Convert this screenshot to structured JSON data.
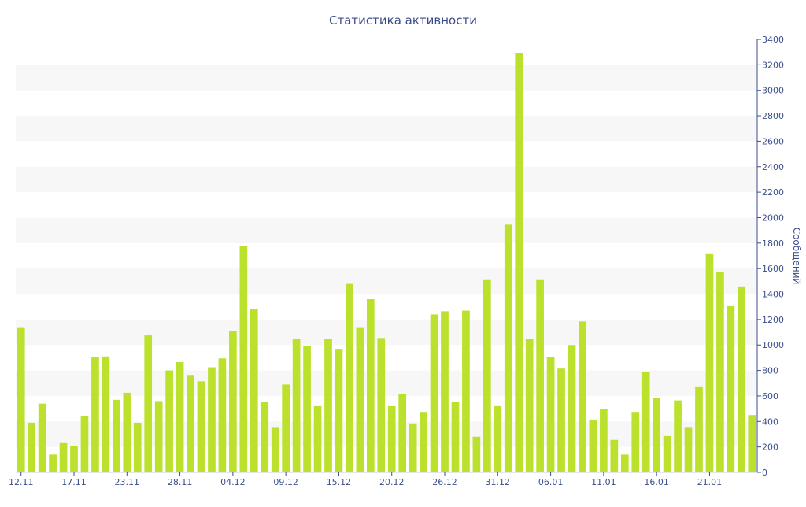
{
  "chart_data": {
    "type": "bar",
    "title": "Статистика активности",
    "ylabel": "Сообщений",
    "xlabel": "",
    "ylim": [
      0,
      3400
    ],
    "y_ticks": [
      0,
      200,
      400,
      600,
      800,
      1000,
      1200,
      1400,
      1600,
      1800,
      2000,
      2200,
      2400,
      2600,
      2800,
      3000,
      3200,
      3400
    ],
    "y_axis_position": "right",
    "grid": "alternating horizontal bands",
    "x_tick_labels": [
      {
        "label": "12.11",
        "index": 0
      },
      {
        "label": "17.11",
        "index": 5
      },
      {
        "label": "23.11",
        "index": 10
      },
      {
        "label": "28.11",
        "index": 15
      },
      {
        "label": "04.12",
        "index": 20
      },
      {
        "label": "09.12",
        "index": 25
      },
      {
        "label": "15.12",
        "index": 30
      },
      {
        "label": "20.12",
        "index": 35
      },
      {
        "label": "26.12",
        "index": 40
      },
      {
        "label": "31.12",
        "index": 45
      },
      {
        "label": "06.01",
        "index": 50
      },
      {
        "label": "11.01",
        "index": 55
      },
      {
        "label": "16.01",
        "index": 60
      },
      {
        "label": "21.01",
        "index": 65
      }
    ],
    "values": [
      1140,
      390,
      540,
      140,
      230,
      205,
      445,
      905,
      910,
      570,
      625,
      390,
      1075,
      560,
      800,
      865,
      765,
      715,
      825,
      895,
      1110,
      1775,
      1285,
      550,
      350,
      690,
      1045,
      995,
      520,
      1045,
      970,
      1480,
      1140,
      1360,
      1055,
      520,
      615,
      385,
      475,
      1240,
      1265,
      555,
      1270,
      280,
      1510,
      520,
      1945,
      3295,
      1050,
      1510,
      905,
      815,
      1000,
      1185,
      415,
      500,
      255,
      140,
      475,
      790,
      585,
      285,
      565,
      350,
      675,
      1720,
      1575,
      1305,
      1460,
      450
    ],
    "colors": {
      "bar": "#bbe12d",
      "axis_text": "#3b4e8c",
      "band": "#f7f7f7"
    }
  }
}
